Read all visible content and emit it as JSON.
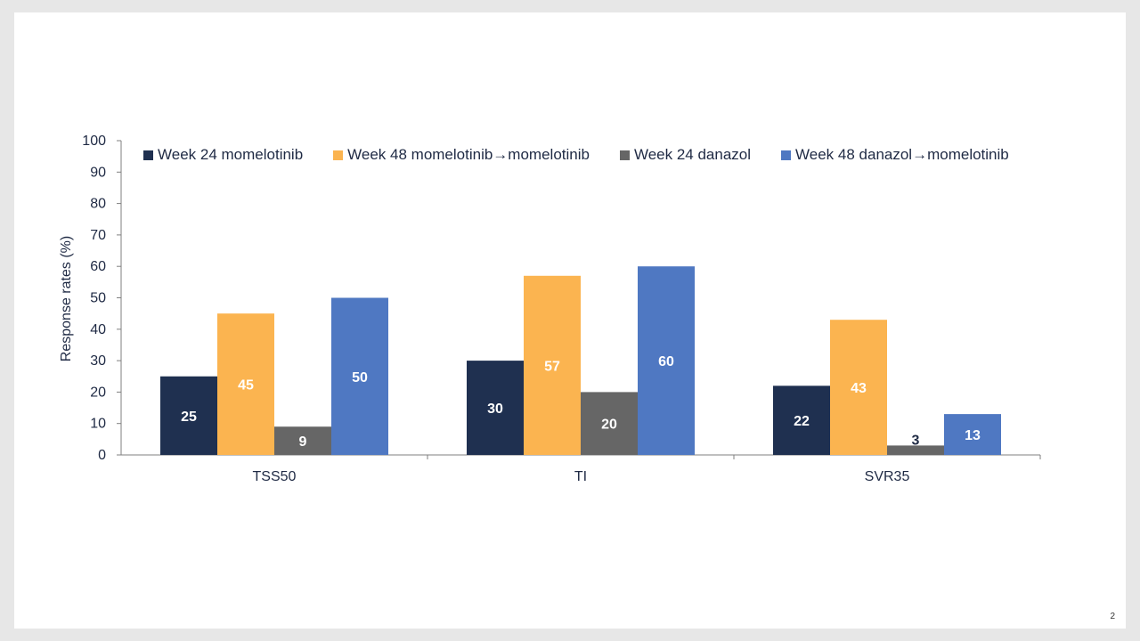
{
  "page_number": "2",
  "chart_data": {
    "type": "bar",
    "categories": [
      "TSS50",
      "TI",
      "SVR35"
    ],
    "series": [
      {
        "name": "Week 24 momelotinib",
        "values": [
          25,
          30,
          22
        ],
        "color": "#1f3050",
        "label_color": "#ffffff"
      },
      {
        "name": "Week 48 momelotinib→momelotinib",
        "values": [
          45,
          57,
          43
        ],
        "color": "#fbb450",
        "label_color": "#ffffff"
      },
      {
        "name": "Week 24 danazol",
        "values": [
          9,
          20,
          3
        ],
        "color": "#666666",
        "label_color": "#ffffff"
      },
      {
        "name": "Week 48 danazol→momelotinib",
        "values": [
          50,
          60,
          13
        ],
        "color": "#4f78c2",
        "label_color": "#ffffff"
      }
    ],
    "ylabel": "Response rates (%)",
    "xlabel": "",
    "ylim": [
      0,
      100
    ],
    "yticks": [
      0,
      10,
      20,
      30,
      40,
      50,
      60,
      70,
      80,
      90,
      100
    ],
    "legend_position": "top",
    "grid": false
  }
}
